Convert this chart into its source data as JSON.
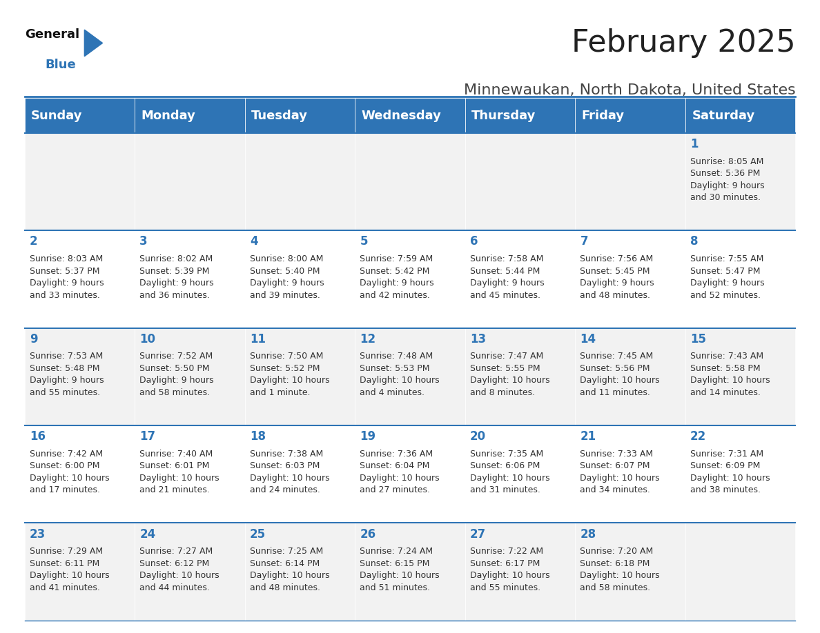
{
  "title": "February 2025",
  "subtitle": "Minnewaukan, North Dakota, United States",
  "header_bg": "#2E74B5",
  "header_text_color": "#FFFFFF",
  "cell_bg_odd": "#F2F2F2",
  "cell_bg_even": "#FFFFFF",
  "day_number_color": "#2E74B5",
  "info_text_color": "#333333",
  "divider_color": "#2E74B5",
  "days_of_week": [
    "Sunday",
    "Monday",
    "Tuesday",
    "Wednesday",
    "Thursday",
    "Friday",
    "Saturday"
  ],
  "calendar_data": [
    [
      {
        "day": "",
        "info": ""
      },
      {
        "day": "",
        "info": ""
      },
      {
        "day": "",
        "info": ""
      },
      {
        "day": "",
        "info": ""
      },
      {
        "day": "",
        "info": ""
      },
      {
        "day": "",
        "info": ""
      },
      {
        "day": "1",
        "info": "Sunrise: 8:05 AM\nSunset: 5:36 PM\nDaylight: 9 hours\nand 30 minutes."
      }
    ],
    [
      {
        "day": "2",
        "info": "Sunrise: 8:03 AM\nSunset: 5:37 PM\nDaylight: 9 hours\nand 33 minutes."
      },
      {
        "day": "3",
        "info": "Sunrise: 8:02 AM\nSunset: 5:39 PM\nDaylight: 9 hours\nand 36 minutes."
      },
      {
        "day": "4",
        "info": "Sunrise: 8:00 AM\nSunset: 5:40 PM\nDaylight: 9 hours\nand 39 minutes."
      },
      {
        "day": "5",
        "info": "Sunrise: 7:59 AM\nSunset: 5:42 PM\nDaylight: 9 hours\nand 42 minutes."
      },
      {
        "day": "6",
        "info": "Sunrise: 7:58 AM\nSunset: 5:44 PM\nDaylight: 9 hours\nand 45 minutes."
      },
      {
        "day": "7",
        "info": "Sunrise: 7:56 AM\nSunset: 5:45 PM\nDaylight: 9 hours\nand 48 minutes."
      },
      {
        "day": "8",
        "info": "Sunrise: 7:55 AM\nSunset: 5:47 PM\nDaylight: 9 hours\nand 52 minutes."
      }
    ],
    [
      {
        "day": "9",
        "info": "Sunrise: 7:53 AM\nSunset: 5:48 PM\nDaylight: 9 hours\nand 55 minutes."
      },
      {
        "day": "10",
        "info": "Sunrise: 7:52 AM\nSunset: 5:50 PM\nDaylight: 9 hours\nand 58 minutes."
      },
      {
        "day": "11",
        "info": "Sunrise: 7:50 AM\nSunset: 5:52 PM\nDaylight: 10 hours\nand 1 minute."
      },
      {
        "day": "12",
        "info": "Sunrise: 7:48 AM\nSunset: 5:53 PM\nDaylight: 10 hours\nand 4 minutes."
      },
      {
        "day": "13",
        "info": "Sunrise: 7:47 AM\nSunset: 5:55 PM\nDaylight: 10 hours\nand 8 minutes."
      },
      {
        "day": "14",
        "info": "Sunrise: 7:45 AM\nSunset: 5:56 PM\nDaylight: 10 hours\nand 11 minutes."
      },
      {
        "day": "15",
        "info": "Sunrise: 7:43 AM\nSunset: 5:58 PM\nDaylight: 10 hours\nand 14 minutes."
      }
    ],
    [
      {
        "day": "16",
        "info": "Sunrise: 7:42 AM\nSunset: 6:00 PM\nDaylight: 10 hours\nand 17 minutes."
      },
      {
        "day": "17",
        "info": "Sunrise: 7:40 AM\nSunset: 6:01 PM\nDaylight: 10 hours\nand 21 minutes."
      },
      {
        "day": "18",
        "info": "Sunrise: 7:38 AM\nSunset: 6:03 PM\nDaylight: 10 hours\nand 24 minutes."
      },
      {
        "day": "19",
        "info": "Sunrise: 7:36 AM\nSunset: 6:04 PM\nDaylight: 10 hours\nand 27 minutes."
      },
      {
        "day": "20",
        "info": "Sunrise: 7:35 AM\nSunset: 6:06 PM\nDaylight: 10 hours\nand 31 minutes."
      },
      {
        "day": "21",
        "info": "Sunrise: 7:33 AM\nSunset: 6:07 PM\nDaylight: 10 hours\nand 34 minutes."
      },
      {
        "day": "22",
        "info": "Sunrise: 7:31 AM\nSunset: 6:09 PM\nDaylight: 10 hours\nand 38 minutes."
      }
    ],
    [
      {
        "day": "23",
        "info": "Sunrise: 7:29 AM\nSunset: 6:11 PM\nDaylight: 10 hours\nand 41 minutes."
      },
      {
        "day": "24",
        "info": "Sunrise: 7:27 AM\nSunset: 6:12 PM\nDaylight: 10 hours\nand 44 minutes."
      },
      {
        "day": "25",
        "info": "Sunrise: 7:25 AM\nSunset: 6:14 PM\nDaylight: 10 hours\nand 48 minutes."
      },
      {
        "day": "26",
        "info": "Sunrise: 7:24 AM\nSunset: 6:15 PM\nDaylight: 10 hours\nand 51 minutes."
      },
      {
        "day": "27",
        "info": "Sunrise: 7:22 AM\nSunset: 6:17 PM\nDaylight: 10 hours\nand 55 minutes."
      },
      {
        "day": "28",
        "info": "Sunrise: 7:20 AM\nSunset: 6:18 PM\nDaylight: 10 hours\nand 58 minutes."
      },
      {
        "day": "",
        "info": ""
      }
    ]
  ],
  "logo_triangle_color": "#2E74B5",
  "title_fontsize": 32,
  "subtitle_fontsize": 16,
  "header_fontsize": 13,
  "day_num_fontsize": 12,
  "info_fontsize": 9
}
